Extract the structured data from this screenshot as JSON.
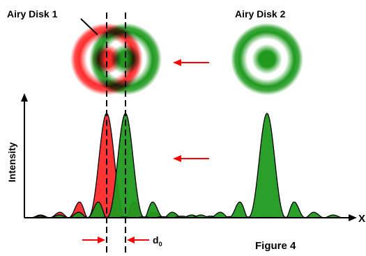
{
  "labels": {
    "disk1": "Airy Disk 1",
    "disk2": "Airy Disk 2",
    "y_axis": "Intensity",
    "x_axis": "X",
    "separation_main": "d",
    "separation_sub": "0",
    "figure": "Figure 4"
  },
  "colors": {
    "red": "#ff2a2a",
    "green": "#1f9a1f",
    "arrow": "#ff0000",
    "ink": "#000000"
  }
}
